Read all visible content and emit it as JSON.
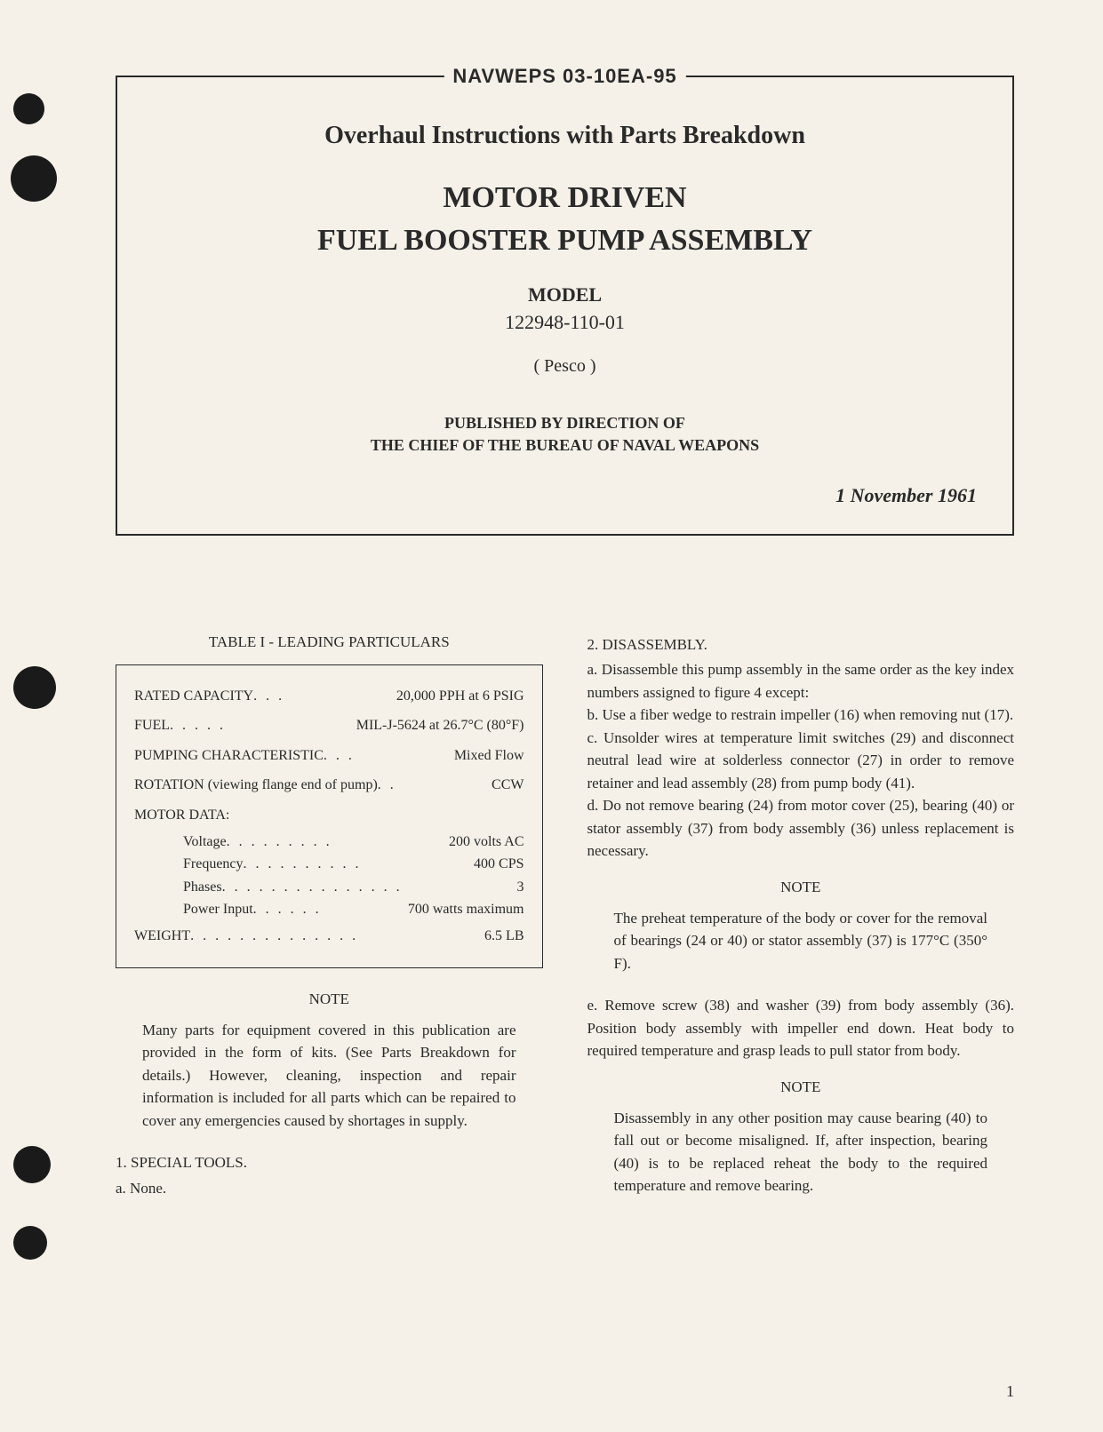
{
  "header": {
    "doc_number": "NAVWEPS 03-10EA-95",
    "subtitle": "Overhaul Instructions with Parts Breakdown",
    "main_title_line1": "MOTOR DRIVEN",
    "main_title_line2": "FUEL BOOSTER PUMP ASSEMBLY",
    "model_label": "MODEL",
    "model_number": "122948-110-01",
    "manufacturer": "( Pesco )",
    "published_line1": "PUBLISHED BY DIRECTION OF",
    "published_line2": "THE CHIEF OF THE BUREAU OF NAVAL WEAPONS",
    "date": "1 November 1961"
  },
  "table": {
    "title": "TABLE I - LEADING PARTICULARS",
    "rows": [
      {
        "label": "RATED CAPACITY",
        "dots": " .  .  . ",
        "value": "20,000 PPH at 6 PSIG"
      },
      {
        "label": "FUEL",
        "dots": " .  .  .  .  . ",
        "value": "MIL-J-5624 at 26.7°C (80°F)"
      },
      {
        "label": "PUMPING CHARACTERISTIC",
        "dots": " .  .  . ",
        "value": "Mixed Flow"
      },
      {
        "label": "ROTATION (viewing flange end of pump)",
        "dots": " .  . ",
        "value": "CCW"
      }
    ],
    "motor_heading": "MOTOR DATA:",
    "motor_rows": [
      {
        "label": "Voltage",
        "dots": " . . . . . . . . . ",
        "value": "200 volts AC"
      },
      {
        "label": "Frequency",
        "dots": " . . . . . . . . . . ",
        "value": "400 CPS"
      },
      {
        "label": "Phases",
        "dots": ". . . . . . . . . . . . . . . ",
        "value": "3"
      },
      {
        "label": "Power Input",
        "dots": " . . . . . . ",
        "value": "700 watts maximum"
      }
    ],
    "weight": {
      "label": "WEIGHT",
      "dots": " . . . . . . . . . . . . . . ",
      "value": "6.5 LB"
    }
  },
  "left_column": {
    "note_heading": "NOTE",
    "note_body": "Many parts for equipment covered in this publication are provided in the form of kits. (See Parts Breakdown for details.) However, cleaning, inspection and repair information is included for all parts which can be repaired to cover any emergencies caused by shortages in supply.",
    "section1_num": "1. SPECIAL TOOLS.",
    "section1_a": "a. None."
  },
  "right_column": {
    "section2_num": "2. DISASSEMBLY.",
    "section2_a": "a. Disassemble this pump assembly in the same order as the key index numbers assigned to figure 4 except:",
    "section2_b": "b. Use a fiber wedge to restrain impeller (16) when removing nut (17).",
    "section2_c": "c. Unsolder wires at temperature limit switches (29) and disconnect neutral lead wire at solderless connector (27) in order to remove retainer and lead assembly (28) from pump body (41).",
    "section2_d": "d. Do not remove bearing (24) from motor cover (25), bearing (40) or stator assembly (37) from body assembly (36) unless replacement is necessary.",
    "note1_heading": "NOTE",
    "note1_body": "The preheat temperature of the body or cover for the removal of bearings (24 or 40) or stator assembly (37) is 177°C (350° F).",
    "section2_e": "e. Remove screw (38) and washer (39) from body assembly (36). Position body assembly with impeller end down. Heat body to required temperature and grasp leads to pull stator from body.",
    "note2_heading": "NOTE",
    "note2_body": "Disassembly in any other position may cause bearing (40) to fall out or become misaligned. If, after inspection, bearing (40) is to be replaced reheat the body to the required temperature and remove bearing."
  },
  "page_number": "1"
}
